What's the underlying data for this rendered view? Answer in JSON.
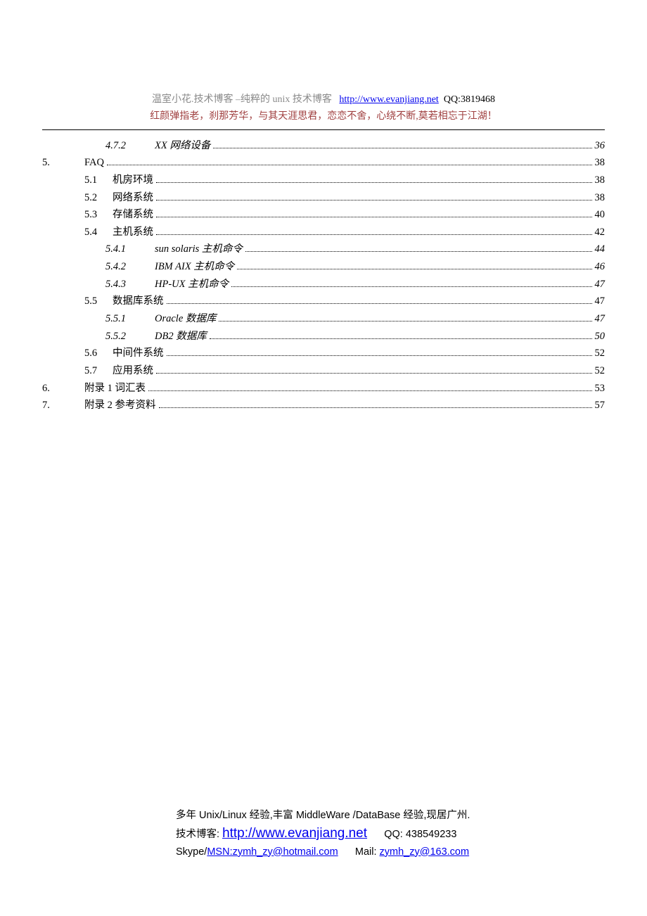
{
  "header": {
    "line1_prefix": "温室小花.技术博客 –纯粹的 unix 技术博客",
    "link_text": "http://www.evanjiang.net",
    "qq_text": "QQ:3819468",
    "line2": "红颜弹指老，刹那芳华，与其天涯思君，恋恋不舍，心绕不断,莫若相忘于江湖！"
  },
  "toc": [
    {
      "lvl": 3,
      "num": "4.7.2",
      "title": "XX 网络设备",
      "page": "36",
      "italic": true
    },
    {
      "lvl": 1,
      "num": "5.",
      "title": "FAQ",
      "page": "38",
      "italic": false
    },
    {
      "lvl": 2,
      "num": "5.1",
      "title": "机房环境",
      "page": "38",
      "italic": false
    },
    {
      "lvl": 2,
      "num": "5.2",
      "title": "网络系统",
      "page": "38",
      "italic": false
    },
    {
      "lvl": 2,
      "num": "5.3",
      "title": "存储系统",
      "page": "40",
      "italic": false
    },
    {
      "lvl": 2,
      "num": "5.4",
      "title": "主机系统",
      "page": "42",
      "italic": false
    },
    {
      "lvl": 3,
      "num": "5.4.1",
      "title": "sun solaris 主机命令",
      "page": "44",
      "italic": true
    },
    {
      "lvl": 3,
      "num": "5.4.2",
      "title": "IBM AIX 主机命令",
      "page": "46",
      "italic": true
    },
    {
      "lvl": 3,
      "num": "5.4.3",
      "title": "HP-UX 主机命令",
      "page": "47",
      "italic": true
    },
    {
      "lvl": 2,
      "num": "5.5",
      "title": "数据库系统",
      "page": "47",
      "italic": false
    },
    {
      "lvl": 3,
      "num": "5.5.1",
      "title": "Oracle 数据库",
      "page": "47",
      "italic": true
    },
    {
      "lvl": 3,
      "num": "5.5.2",
      "title": "DB2 数据库",
      "page": "50",
      "italic": true
    },
    {
      "lvl": 2,
      "num": "5.6",
      "title": "中间件系统",
      "page": "52",
      "italic": false
    },
    {
      "lvl": 2,
      "num": "5.7",
      "title": "应用系统",
      "page": "52",
      "italic": false
    },
    {
      "lvl": 1,
      "num": "6.",
      "title": "附录 1 词汇表",
      "page": "53",
      "italic": false
    },
    {
      "lvl": 1,
      "num": "7.",
      "title": "附录 2 参考资料",
      "page": "57",
      "italic": false
    }
  ],
  "footer": {
    "line1": "多年 Unix/Linux 经验,丰富 MiddleWare /DataBase 经验,现居广州.",
    "blog_label": "技术博客: ",
    "blog_link": "http://www.evanjiang.net",
    "qq": "QQ: 438549233",
    "skype_label": "Skype/",
    "msn": "MSN:zymh_zy@hotmail.com",
    "mail_label": "Mail: ",
    "mail": "zymh_zy@163.com"
  }
}
